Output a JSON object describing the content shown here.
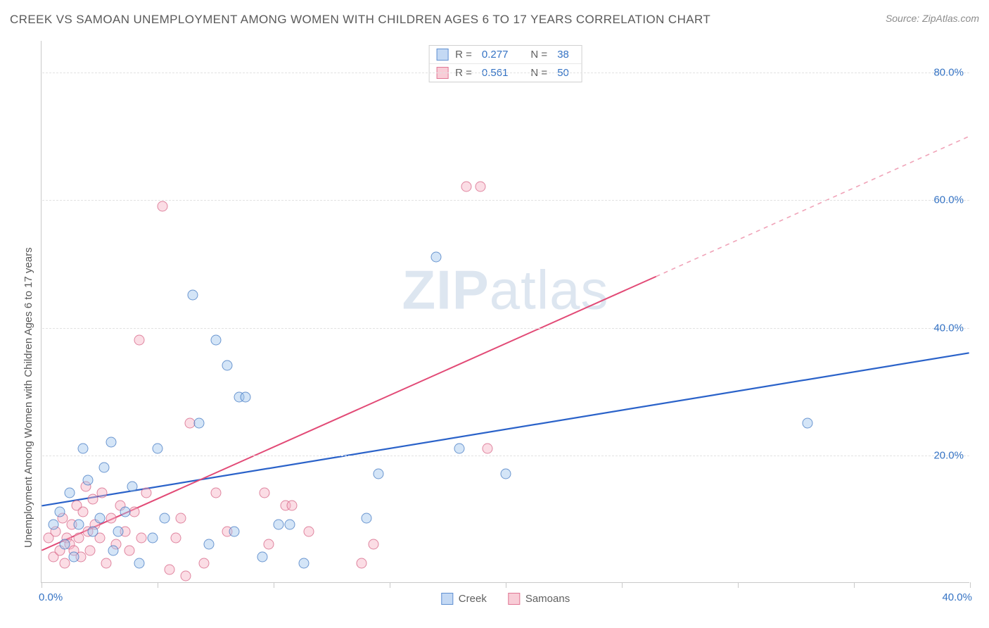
{
  "title": "CREEK VS SAMOAN UNEMPLOYMENT AMONG WOMEN WITH CHILDREN AGES 6 TO 17 YEARS CORRELATION CHART",
  "source": "Source: ZipAtlas.com",
  "watermark_a": "ZIP",
  "watermark_b": "atlas",
  "y_axis_label": "Unemployment Among Women with Children Ages 6 to 17 years",
  "chart": {
    "type": "scatter",
    "x_min": 0,
    "x_max": 40,
    "y_min": 0,
    "y_max": 85,
    "x_ticks": [
      0,
      5,
      10,
      15,
      20,
      25,
      30,
      35,
      40
    ],
    "y_ticks": [
      20,
      40,
      60,
      80
    ],
    "x_tick_labels": {
      "0": "0.0%",
      "40": "40.0%"
    },
    "y_tick_labels": {
      "20": "20.0%",
      "40": "40.0%",
      "60": "60.0%",
      "80": "80.0%"
    },
    "grid_color": "#e2e2e2",
    "background_color": "#ffffff",
    "axis_color": "#c9c9c9",
    "series": {
      "creek": {
        "label": "Creek",
        "color_fill": "#c4d9f4",
        "color_border": "#4a7fc6",
        "R": "0.277",
        "N": "38",
        "trend": {
          "x1": 0,
          "y1": 12,
          "x2": 40,
          "y2": 36,
          "color": "#2a62c9",
          "width": 2.2
        },
        "points": [
          [
            0.5,
            9
          ],
          [
            0.8,
            11
          ],
          [
            1.0,
            6
          ],
          [
            1.2,
            14
          ],
          [
            1.4,
            4
          ],
          [
            1.6,
            9
          ],
          [
            1.8,
            21
          ],
          [
            2.0,
            16
          ],
          [
            2.2,
            8
          ],
          [
            2.5,
            10
          ],
          [
            2.7,
            18
          ],
          [
            3.0,
            22
          ],
          [
            3.1,
            5
          ],
          [
            3.3,
            8
          ],
          [
            3.6,
            11
          ],
          [
            3.9,
            15
          ],
          [
            4.2,
            3
          ],
          [
            4.8,
            7
          ],
          [
            5.0,
            21
          ],
          [
            5.3,
            10
          ],
          [
            6.5,
            45
          ],
          [
            6.8,
            25
          ],
          [
            7.2,
            6
          ],
          [
            7.5,
            38
          ],
          [
            8.0,
            34
          ],
          [
            8.3,
            8
          ],
          [
            8.5,
            29
          ],
          [
            8.8,
            29
          ],
          [
            9.5,
            4
          ],
          [
            10.2,
            9
          ],
          [
            10.7,
            9
          ],
          [
            11.3,
            3
          ],
          [
            14.0,
            10
          ],
          [
            14.5,
            17
          ],
          [
            17.0,
            51
          ],
          [
            18.0,
            21
          ],
          [
            20.0,
            17
          ],
          [
            33.0,
            25
          ]
        ]
      },
      "samoans": {
        "label": "Samoans",
        "color_fill": "#f8cdd7",
        "color_border": "#d96a8a",
        "R": "0.561",
        "N": "50",
        "trend_solid": {
          "x1": 0,
          "y1": 5,
          "x2": 26.5,
          "y2": 48,
          "color": "#e24a76",
          "width": 2
        },
        "trend_dash": {
          "x1": 26.5,
          "y1": 48,
          "x2": 40,
          "y2": 70,
          "color": "#f0a3b8",
          "width": 1.6
        },
        "points": [
          [
            0.3,
            7
          ],
          [
            0.5,
            4
          ],
          [
            0.6,
            8
          ],
          [
            0.8,
            5
          ],
          [
            0.9,
            10
          ],
          [
            1.0,
            3
          ],
          [
            1.1,
            7
          ],
          [
            1.2,
            6
          ],
          [
            1.3,
            9
          ],
          [
            1.4,
            5
          ],
          [
            1.5,
            12
          ],
          [
            1.6,
            7
          ],
          [
            1.7,
            4
          ],
          [
            1.8,
            11
          ],
          [
            1.9,
            15
          ],
          [
            2.0,
            8
          ],
          [
            2.1,
            5
          ],
          [
            2.2,
            13
          ],
          [
            2.3,
            9
          ],
          [
            2.5,
            7
          ],
          [
            2.6,
            14
          ],
          [
            2.8,
            3
          ],
          [
            3.0,
            10
          ],
          [
            3.2,
            6
          ],
          [
            3.4,
            12
          ],
          [
            3.6,
            8
          ],
          [
            3.8,
            5
          ],
          [
            4.0,
            11
          ],
          [
            4.2,
            38
          ],
          [
            4.3,
            7
          ],
          [
            4.5,
            14
          ],
          [
            5.2,
            59
          ],
          [
            5.5,
            2
          ],
          [
            6.0,
            10
          ],
          [
            6.4,
            25
          ],
          [
            7.0,
            3
          ],
          [
            7.5,
            14
          ],
          [
            8.0,
            8
          ],
          [
            9.6,
            14
          ],
          [
            9.8,
            6
          ],
          [
            10.5,
            12
          ],
          [
            10.8,
            12
          ],
          [
            11.5,
            8
          ],
          [
            13.8,
            3
          ],
          [
            14.3,
            6
          ],
          [
            18.3,
            62
          ],
          [
            18.9,
            62
          ],
          [
            19.2,
            21
          ],
          [
            5.8,
            7
          ],
          [
            6.2,
            1
          ]
        ]
      }
    }
  },
  "stat_labels": {
    "R": "R =",
    "N": "N ="
  }
}
